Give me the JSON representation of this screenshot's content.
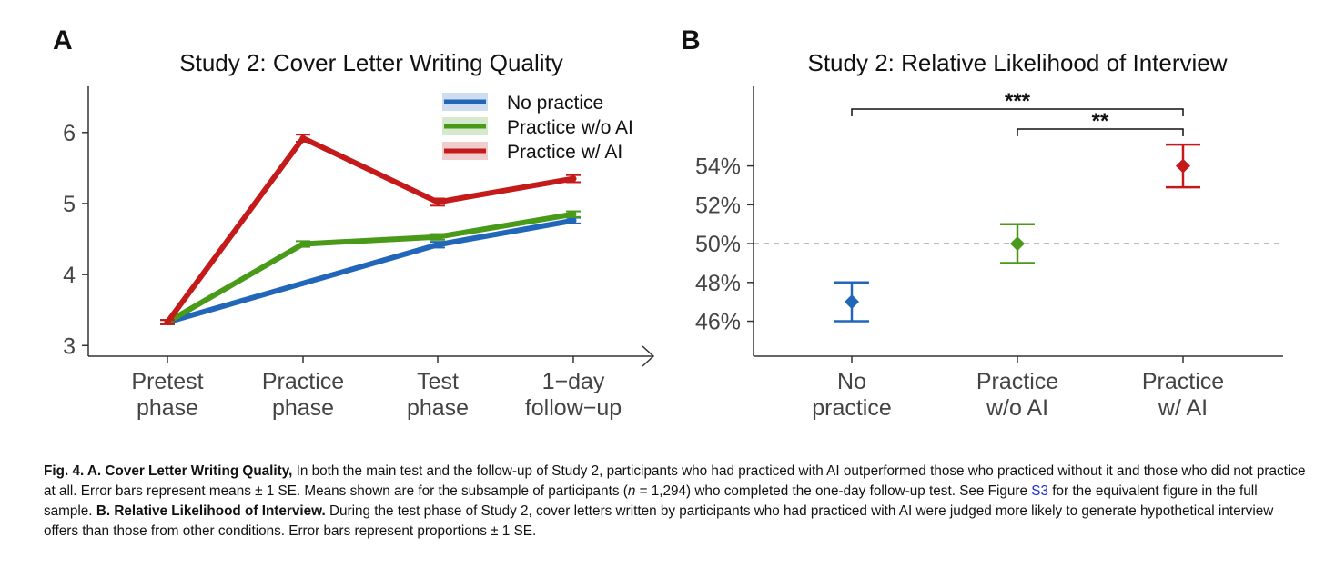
{
  "colors": {
    "no_practice": "#2166b8",
    "practice_wo_ai": "#4a9a1a",
    "practice_w_ai": "#c41a1a",
    "axis": "#333333",
    "dashed": "#777777"
  },
  "panel_a": {
    "letter": "A"
  },
  "panel_b": {
    "letter": "B"
  },
  "chart_data": [
    {
      "type": "line",
      "title": "Study 2: Cover Letter Writing Quality",
      "xlabel": "",
      "ylabel": "",
      "categories": [
        "Pretest phase",
        "Practice phase",
        "Test phase",
        "1−day follow−up"
      ],
      "category_lines": [
        [
          "Pretest",
          "phase"
        ],
        [
          "Practice",
          "phase"
        ],
        [
          "Test",
          "phase"
        ],
        [
          "1−day",
          "follow−up"
        ]
      ],
      "ylim": [
        2.85,
        6.65
      ],
      "yticks": [
        3,
        4,
        5,
        6
      ],
      "legend_position": "top-right",
      "series": [
        {
          "name": "No practice",
          "color": "#2166b8",
          "values": [
            3.33,
            null,
            4.42,
            4.76
          ],
          "se": [
            0.03,
            null,
            0.04,
            0.04
          ]
        },
        {
          "name": "Practice w/o AI",
          "color": "#4a9a1a",
          "values": [
            3.33,
            4.43,
            4.53,
            4.85
          ],
          "se": [
            0.03,
            0.04,
            0.04,
            0.04
          ]
        },
        {
          "name": "Practice w/ AI",
          "color": "#c41a1a",
          "values": [
            3.33,
            5.92,
            5.02,
            5.35
          ],
          "se": [
            0.03,
            0.05,
            0.05,
            0.05
          ]
        }
      ]
    },
    {
      "type": "scatter",
      "title": "Study 2: Relative Likelihood of Interview",
      "xlabel": "",
      "ylabel": "",
      "categories": [
        "No practice",
        "Practice w/o AI",
        "Practice w/ AI"
      ],
      "category_lines": [
        [
          "No",
          "practice"
        ],
        [
          "Practice",
          "w/o AI"
        ],
        [
          "Practice",
          "w/ AI"
        ]
      ],
      "values": [
        47.0,
        50.0,
        54.0
      ],
      "lower": [
        46.0,
        49.0,
        52.9
      ],
      "upper": [
        48.0,
        51.0,
        55.1
      ],
      "colors": [
        "#2166b8",
        "#4a9a1a",
        "#c41a1a"
      ],
      "ylim": [
        44.2,
        58.1
      ],
      "yticks": [
        46,
        48,
        50,
        52,
        54
      ],
      "ytick_labels": [
        "46%",
        "48%",
        "50%",
        "52%",
        "54%"
      ],
      "reference_line": 50,
      "significance": [
        {
          "from": 0,
          "to": 2,
          "label": "***"
        },
        {
          "from": 1,
          "to": 2,
          "label": "**"
        }
      ]
    }
  ],
  "caption": {
    "fig_label": "Fig. 4. A. Cover Letter Writing Quality,",
    "part1": " In both the main test and the follow-up of Study 2, participants who had practiced with AI outperformed those who practiced without it and those who did not practice at all. Error bars represent means ± 1 SE. Means shown are for the subsample of participants (",
    "n_italic": "n",
    "part2": " = 1,294) who completed the one-day follow-up test. See Figure ",
    "link_text": "S3",
    "part3": " for the equivalent figure in the full sample. ",
    "b_label": "B. Relative Likelihood of Interview.",
    "part4": " During the test phase of Study 2, cover letters written by participants who had practiced with AI were judged more likely to generate hypothetical interview offers than those from other conditions. Error bars represent proportions ± 1 SE."
  }
}
